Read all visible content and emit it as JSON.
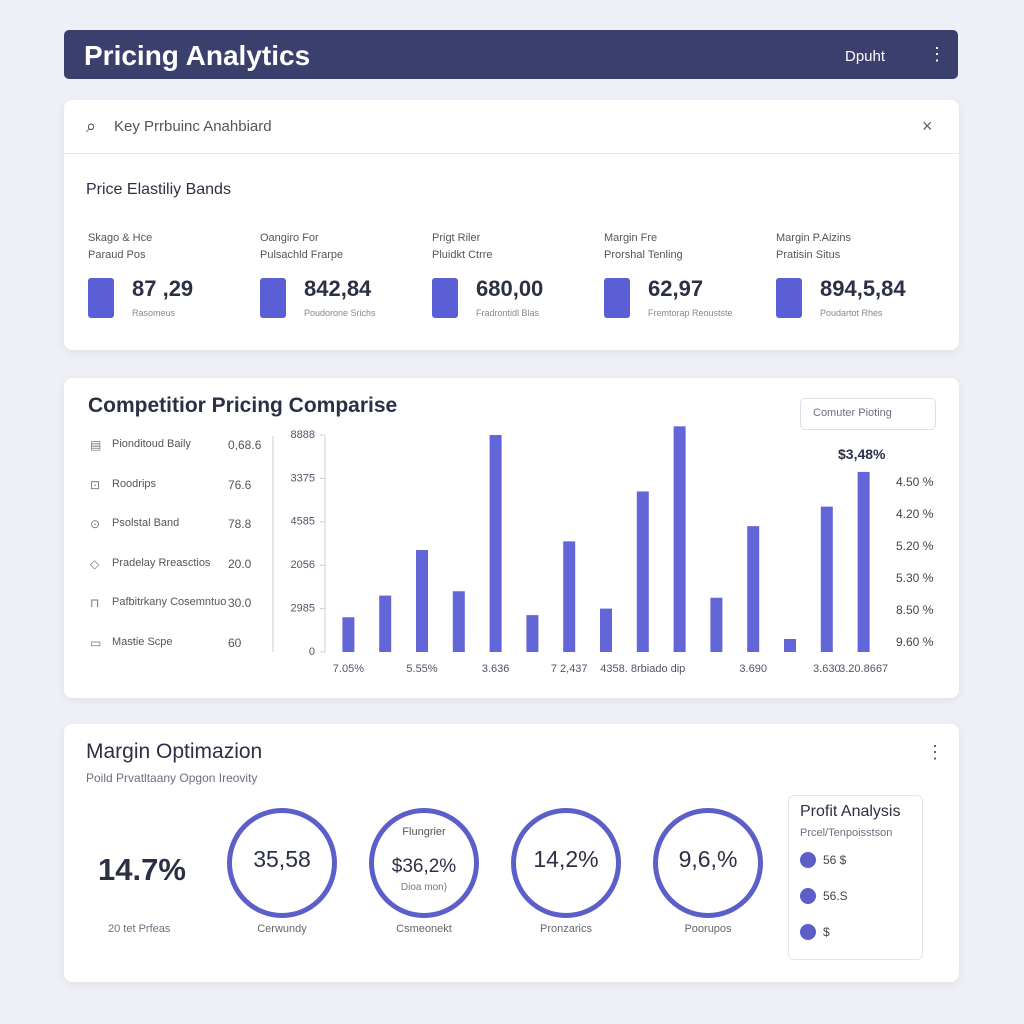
{
  "header": {
    "title": "Pricing Analytics",
    "action": "Dpuht"
  },
  "search": {
    "placeholder": "Key Prrbuinc Anahbiard"
  },
  "elasticity": {
    "title": "Price Elastiliy Bands",
    "items": [
      {
        "label1": "Skago & Hce",
        "label2": "Paraud Pos",
        "value": "87 ,29",
        "caption": "Rasomeus"
      },
      {
        "label1": "Oangiro For",
        "label2": "Pulsachld Frarpe",
        "value": "842,84",
        "caption": "Poudorone Srichs"
      },
      {
        "label1": "Prigt Riler",
        "label2": "Pluidkt Ctrre",
        "value": "680,00",
        "caption": "Fradrontidl Blas"
      },
      {
        "label1": "Margin Fre",
        "label2": "Prorshal Tenling",
        "value": "62,97",
        "caption": "Fremtorap Reoustste"
      },
      {
        "label1": "Margin P.Aizins",
        "label2": "Pratisin Situs",
        "value": "894,5,84",
        "caption": "Poudartot Rhes"
      }
    ]
  },
  "competitor": {
    "title": "Competitior Pricing Comparise",
    "dropdown": "Comuter Pioting",
    "annotation": "$3,48%",
    "legend": [
      "Pionditoud Baily",
      "Roodrips",
      "Psolstal Band",
      "Pradelay Rreasctios",
      "Pafbitrkany Cosemntuo",
      "Mastie Scpe"
    ],
    "legend_values": [
      "0,68.6",
      "76.6",
      "78.8",
      "20.0",
      "30.0",
      "60"
    ],
    "right_labels": [
      "4.50 %",
      "4.20 %",
      "5.20 %",
      "5.30 %",
      "8.50 %",
      "9.60 %"
    ]
  },
  "chart_data": {
    "type": "bar",
    "color": "#6366d6",
    "categories": [
      "7.05%",
      null,
      "5.55%",
      null,
      "3.636",
      null,
      "7 2,437",
      null,
      "4358. 8rbiado dip",
      null,
      null,
      "3.690",
      null,
      "3.630",
      "3.20.8667"
    ],
    "values": [
      16,
      26,
      47,
      28,
      100,
      17,
      51,
      20,
      74,
      104,
      25,
      58,
      6,
      67,
      83
    ],
    "ylim": [
      0,
      106
    ],
    "yticks": [
      0,
      {
        "value": 20,
        "label": "2985"
      },
      {
        "value": 40,
        "label": "2056"
      },
      {
        "value": 60,
        "label": "4585"
      },
      {
        "value": 80,
        "label": "3375"
      },
      {
        "value": 100,
        "label": "8888"
      }
    ]
  },
  "margin": {
    "title": "Margin Optimazion",
    "subtitle": "Poild Prvatltaany Opgon Ireovity",
    "lead": {
      "value": "14.7%",
      "caption": "20 tet Prfeas"
    },
    "rings": [
      {
        "value": "35,58",
        "caption": "Cerwundy"
      },
      {
        "top": "Flungrier",
        "value": "$36,2%",
        "bottom": "Dioa mon)",
        "caption": "Csmeonekt"
      },
      {
        "value": "14,2%",
        "caption": "Pronzarics"
      },
      {
        "value": "9,6,%",
        "caption": "Poorupos"
      }
    ],
    "profit": {
      "title": "Profit Analysis",
      "subtitle": "Prcel/Tenpoisstson",
      "items": [
        "56 $",
        "56.S",
        "$"
      ]
    }
  }
}
